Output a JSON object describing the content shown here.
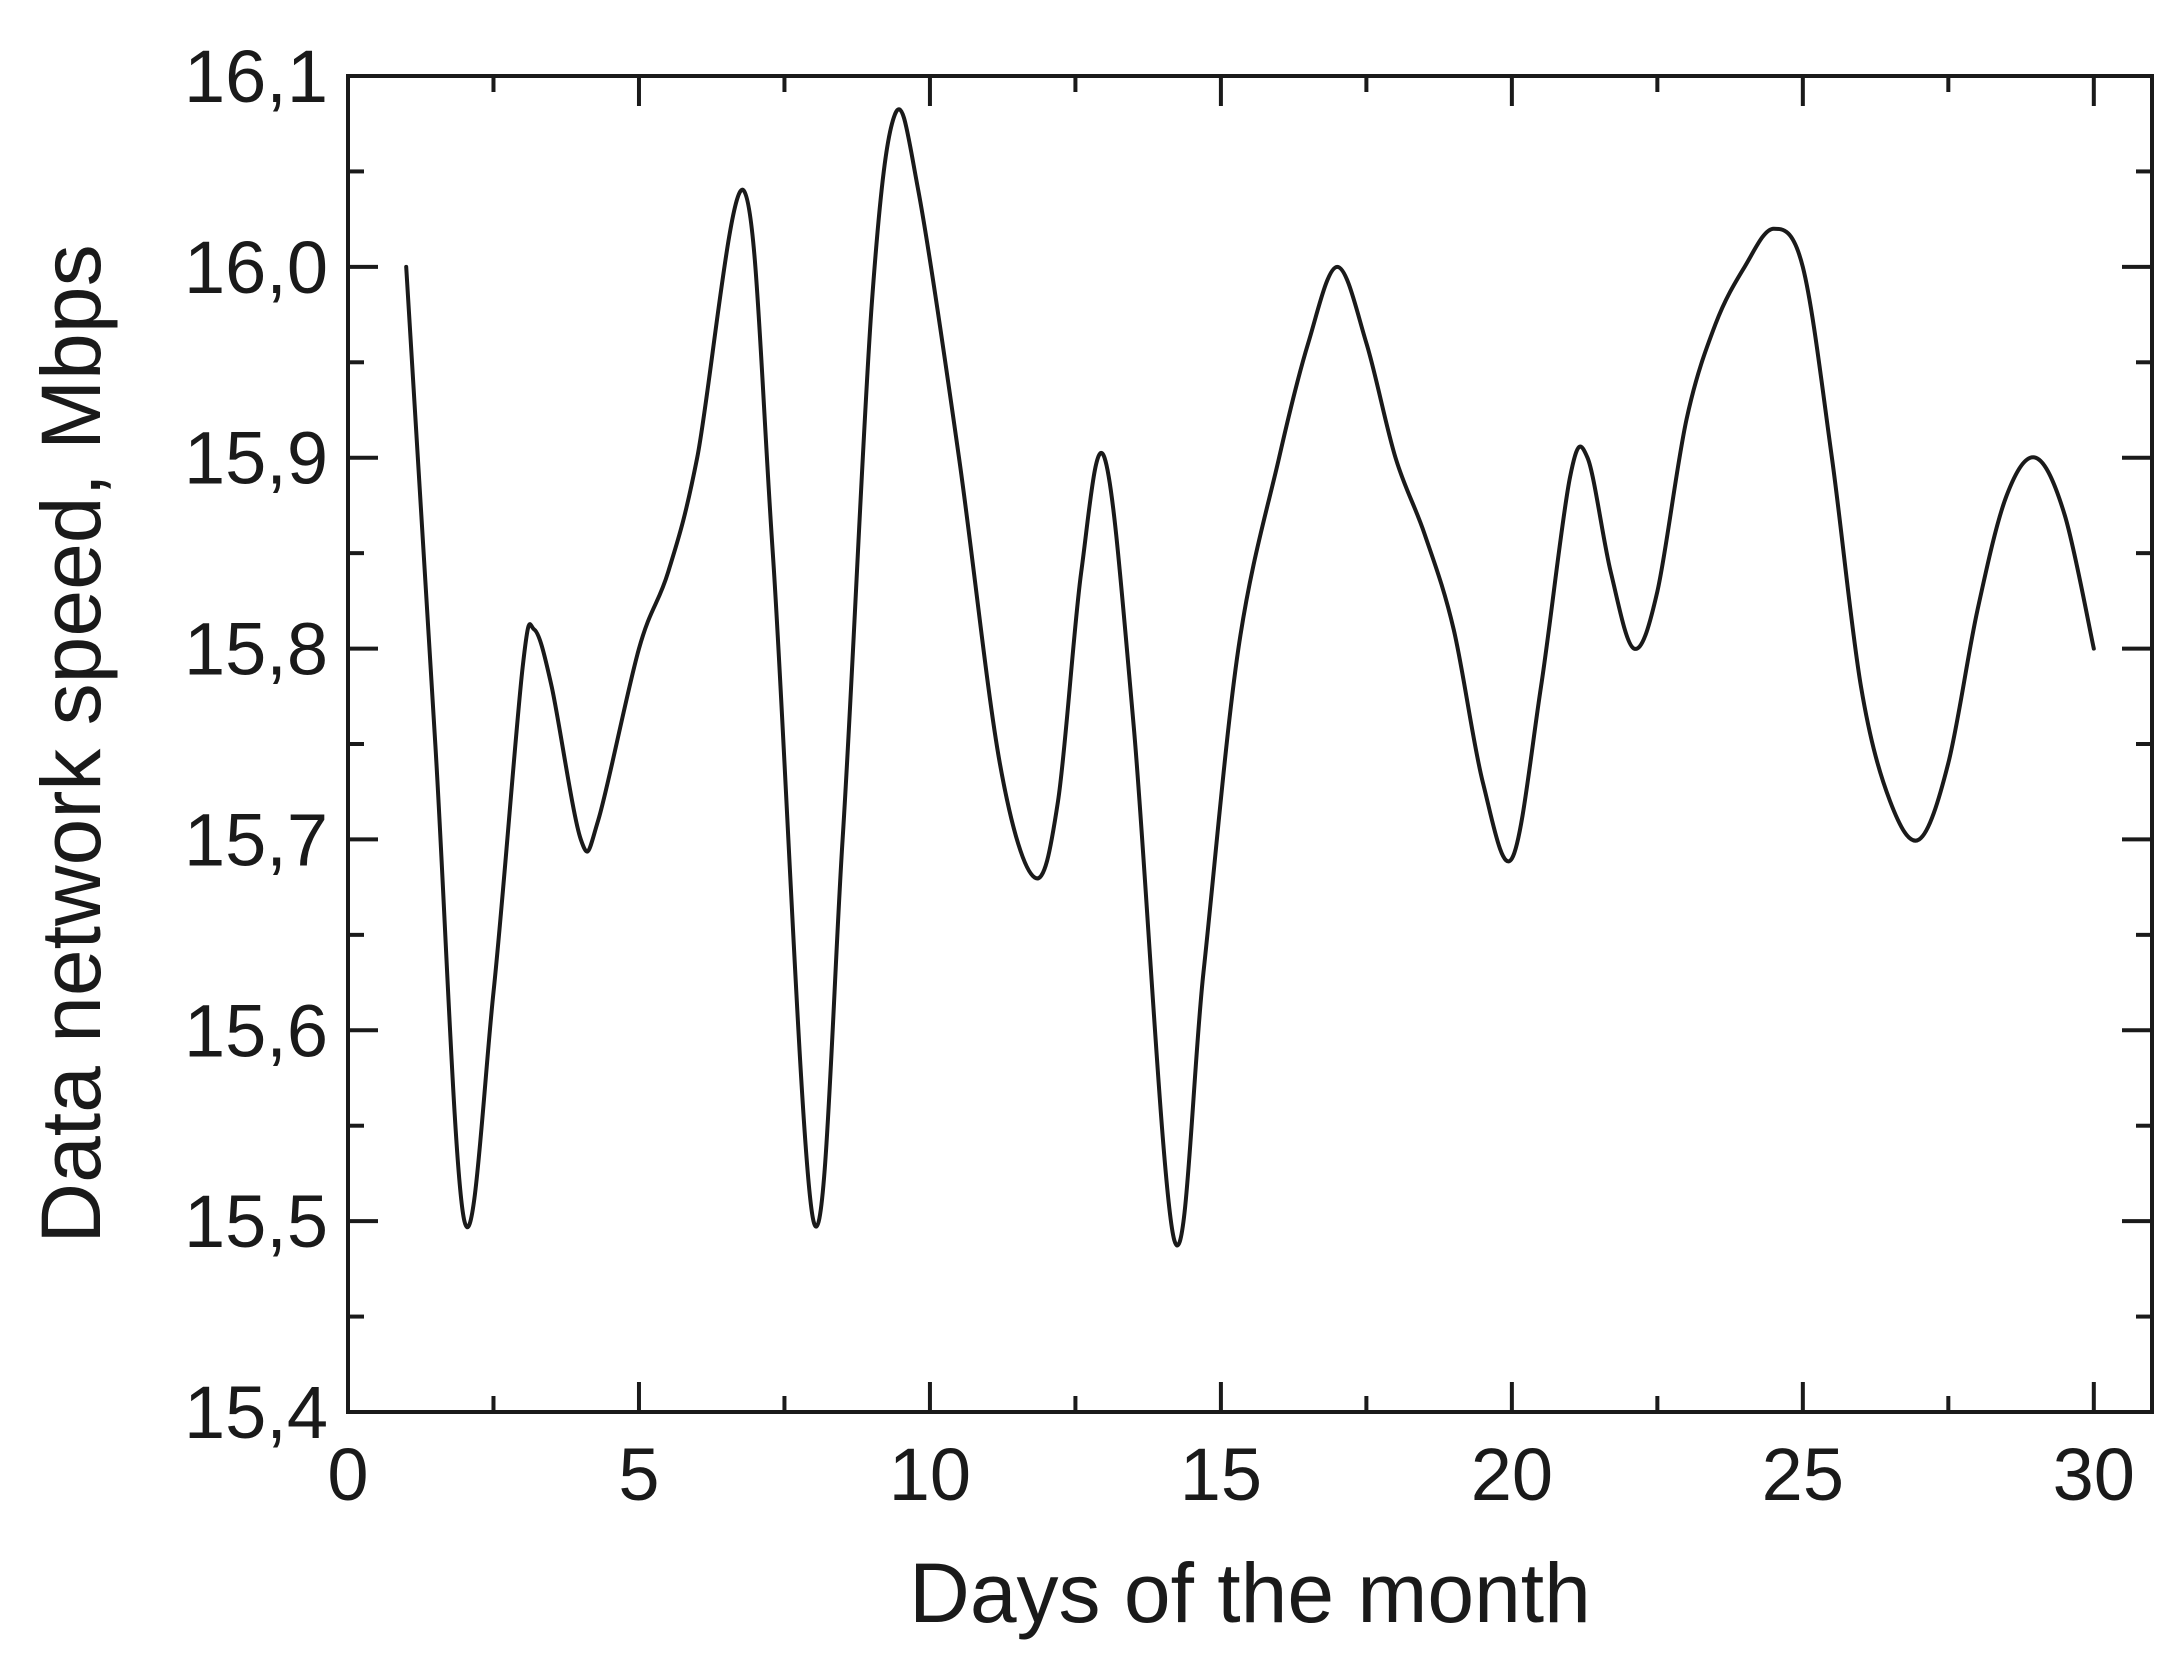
{
  "chart_data": {
    "type": "line",
    "title": "",
    "xlabel": "Days of the month",
    "ylabel": "Data network speed, Mbps",
    "xlim": [
      0,
      31
    ],
    "ylim": [
      15.4,
      16.1
    ],
    "xticks": [
      0,
      5,
      10,
      15,
      20,
      25,
      30
    ],
    "xtick_labels": [
      "0",
      "5",
      "10",
      "15",
      "20",
      "25",
      "30"
    ],
    "yticks": [
      15.4,
      15.5,
      15.6,
      15.7,
      15.8,
      15.9,
      16.0,
      16.1
    ],
    "ytick_labels": [
      "15,4",
      "15,5",
      "15,6",
      "15,7",
      "15,8",
      "15,9",
      "16,0",
      "16,1"
    ],
    "grid": false,
    "line_color": "#1a1a1a",
    "series": [
      {
        "points": [
          [
            1,
            16.0
          ],
          [
            1.5,
            15.75
          ],
          [
            2,
            15.5
          ],
          [
            2.5,
            15.62
          ],
          [
            3,
            15.79
          ],
          [
            3.2,
            15.81
          ],
          [
            3.5,
            15.78
          ],
          [
            4,
            15.7
          ],
          [
            4.3,
            15.71
          ],
          [
            5,
            15.8
          ],
          [
            5.5,
            15.84
          ],
          [
            6,
            15.9
          ],
          [
            6.8,
            16.04
          ],
          [
            7.3,
            15.85
          ],
          [
            8,
            15.5
          ],
          [
            8.5,
            15.7
          ],
          [
            9,
            15.98
          ],
          [
            9.4,
            16.08
          ],
          [
            9.8,
            16.04
          ],
          [
            10.5,
            15.9
          ],
          [
            11.2,
            15.74
          ],
          [
            11.8,
            15.68
          ],
          [
            12.2,
            15.72
          ],
          [
            12.6,
            15.84
          ],
          [
            13,
            15.9
          ],
          [
            13.5,
            15.76
          ],
          [
            14.2,
            15.49
          ],
          [
            14.7,
            15.63
          ],
          [
            15.3,
            15.8
          ],
          [
            16,
            15.9
          ],
          [
            16.5,
            15.96
          ],
          [
            17,
            16.0
          ],
          [
            17.5,
            15.96
          ],
          [
            18,
            15.9
          ],
          [
            18.5,
            15.86
          ],
          [
            19,
            15.81
          ],
          [
            19.5,
            15.73
          ],
          [
            20,
            15.69
          ],
          [
            20.5,
            15.78
          ],
          [
            21,
            15.89
          ],
          [
            21.3,
            15.9
          ],
          [
            21.7,
            15.84
          ],
          [
            22.1,
            15.8
          ],
          [
            22.5,
            15.83
          ],
          [
            23,
            15.92
          ],
          [
            23.5,
            15.97
          ],
          [
            24,
            16.0
          ],
          [
            24.5,
            16.02
          ],
          [
            25,
            16.0
          ],
          [
            25.5,
            15.9
          ],
          [
            26,
            15.78
          ],
          [
            26.5,
            15.72
          ],
          [
            27,
            15.7
          ],
          [
            27.5,
            15.74
          ],
          [
            28,
            15.82
          ],
          [
            28.5,
            15.88
          ],
          [
            29,
            15.9
          ],
          [
            29.5,
            15.87
          ],
          [
            30,
            15.8
          ]
        ]
      }
    ]
  }
}
